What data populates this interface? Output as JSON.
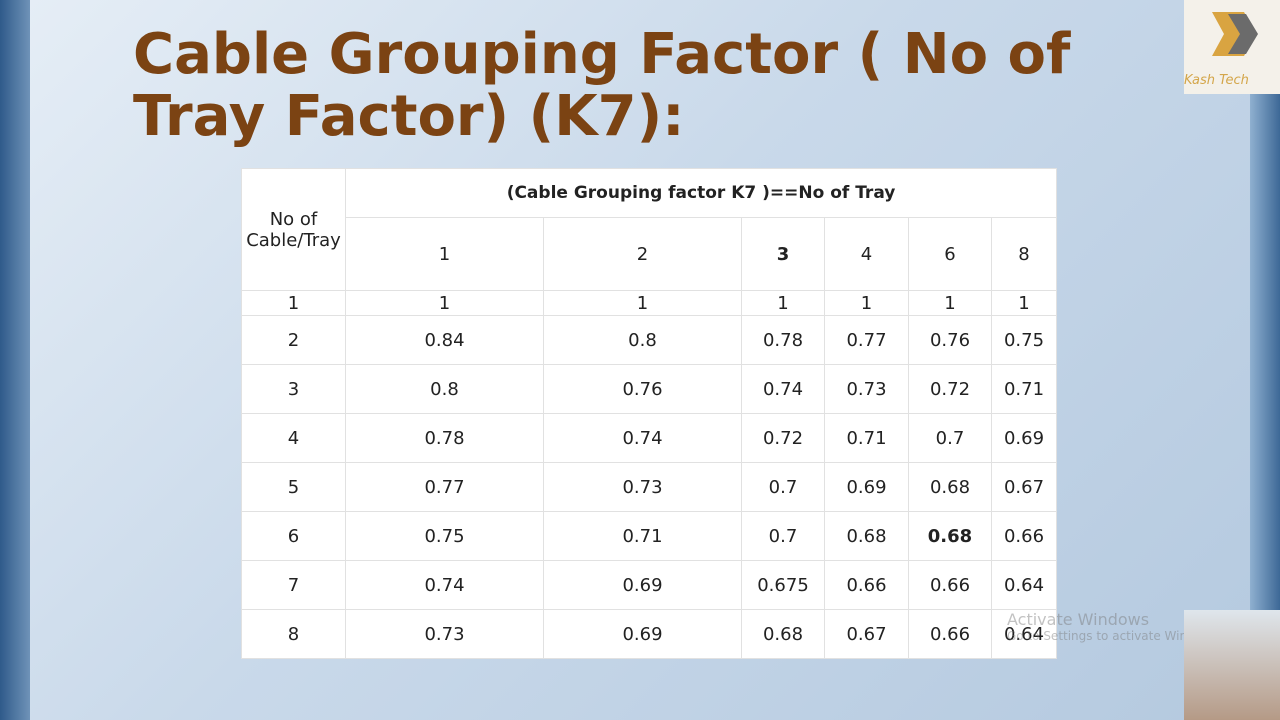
{
  "slide": {
    "title": "Cable Grouping Factor ( No of Tray Factor) (K7):",
    "logo_text": "Kash Tech",
    "table": {
      "corner_header": "No of Cable/Tray",
      "group_header": "(Cable Grouping factor K7 )==No of Tray",
      "columns": [
        "1",
        "2",
        "3",
        "4",
        "6",
        "8"
      ],
      "rows": [
        [
          "1",
          "1",
          "1",
          "1",
          "1",
          "1",
          "1"
        ],
        [
          "2",
          "0.84",
          "0.8",
          "0.78",
          "0.77",
          "0.76",
          "0.75"
        ],
        [
          "3",
          "0.8",
          "0.76",
          "0.74",
          "0.73",
          "0.72",
          "0.71"
        ],
        [
          "4",
          "0.78",
          "0.74",
          "0.72",
          "0.71",
          "0.7",
          "0.69"
        ],
        [
          "5",
          "0.77",
          "0.73",
          "0.7",
          "0.69",
          "0.68",
          "0.67"
        ],
        [
          "6",
          "0.75",
          "0.71",
          "0.7",
          "0.68",
          "0.68",
          "0.66"
        ],
        [
          "7",
          "0.74",
          "0.69",
          "0.675",
          "0.66",
          "0.66",
          "0.64"
        ],
        [
          "8",
          "0.73",
          "0.69",
          "0.68",
          "0.67",
          "0.66",
          "0.64"
        ]
      ]
    },
    "watermark": {
      "title": "Activate Windows",
      "subtitle": "Go to Settings to activate Windows."
    }
  }
}
